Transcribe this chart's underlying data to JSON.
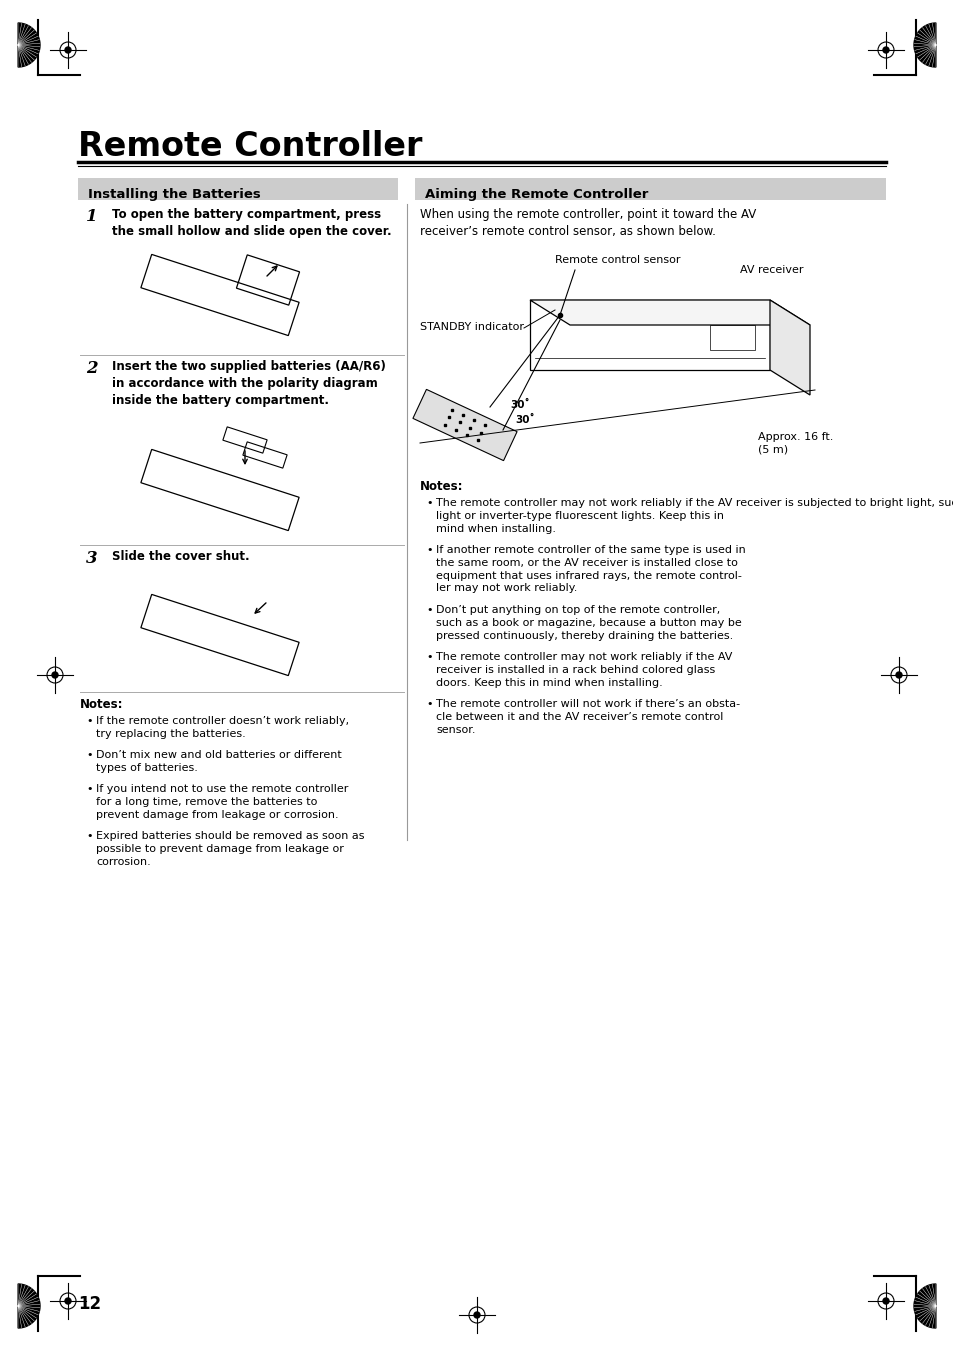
{
  "bg_color": "#ffffff",
  "title": "Remote Controller",
  "left_header": "Installing the Batteries",
  "right_header": "Aiming the Remote Controller",
  "step1_text": "To open the battery compartment, press\nthe small hollow and slide open the cover.",
  "step2_text": "Insert the two supplied batteries (AA/R6)\nin accordance with the polarity diagram\ninside the battery compartment.",
  "step3_text": "Slide the cover shut.",
  "notes_left_title": "Notes:",
  "notes_left": [
    "If the remote controller doesn’t work reliably, try replacing the batteries.",
    "Don’t mix new and old batteries or different types of batteries.",
    "If you intend not to use the remote controller for a long time, remove the batteries to prevent damage from leakage or corrosion.",
    "Expired batteries should be removed as soon as possible to prevent damage from leakage or corrosion."
  ],
  "aim_intro": "When using the remote controller, point it toward the AV\nreceiver’s remote control sensor, as shown below.",
  "notes_right_title": "Notes:",
  "notes_right": [
    "The remote controller may not work reliably if the AV receiver is subjected to bright light, such as direct sun-\nlight or inverter-type fluorescent lights. Keep this in\nmind when installing.",
    "If another remote controller of the same type is used in\nthe same room, or the AV receiver is installed close to\nequipment that uses infrared rays, the remote control-\nler may not work reliably.",
    "Don’t put anything on top of the remote controller,\nsuch as a book or magazine, because a button may be\npressed continuously, thereby draining the batteries.",
    "The remote controller may not work reliably if the AV\nreceiver is installed in a rack behind colored glass\ndoors. Keep this in mind when installing.",
    "The remote controller will not work if there’s an obsta-\ncle between it and the AV receiver’s remote control\nsensor."
  ],
  "page_number": "12",
  "remote_label": "Remote control sensor",
  "av_label": "AV receiver",
  "standby_label": "STANDBY indicator",
  "approx_label": "Approx. 16 ft.\n(5 m)",
  "angle_label1": "30˚",
  "angle_label2": "30˚"
}
